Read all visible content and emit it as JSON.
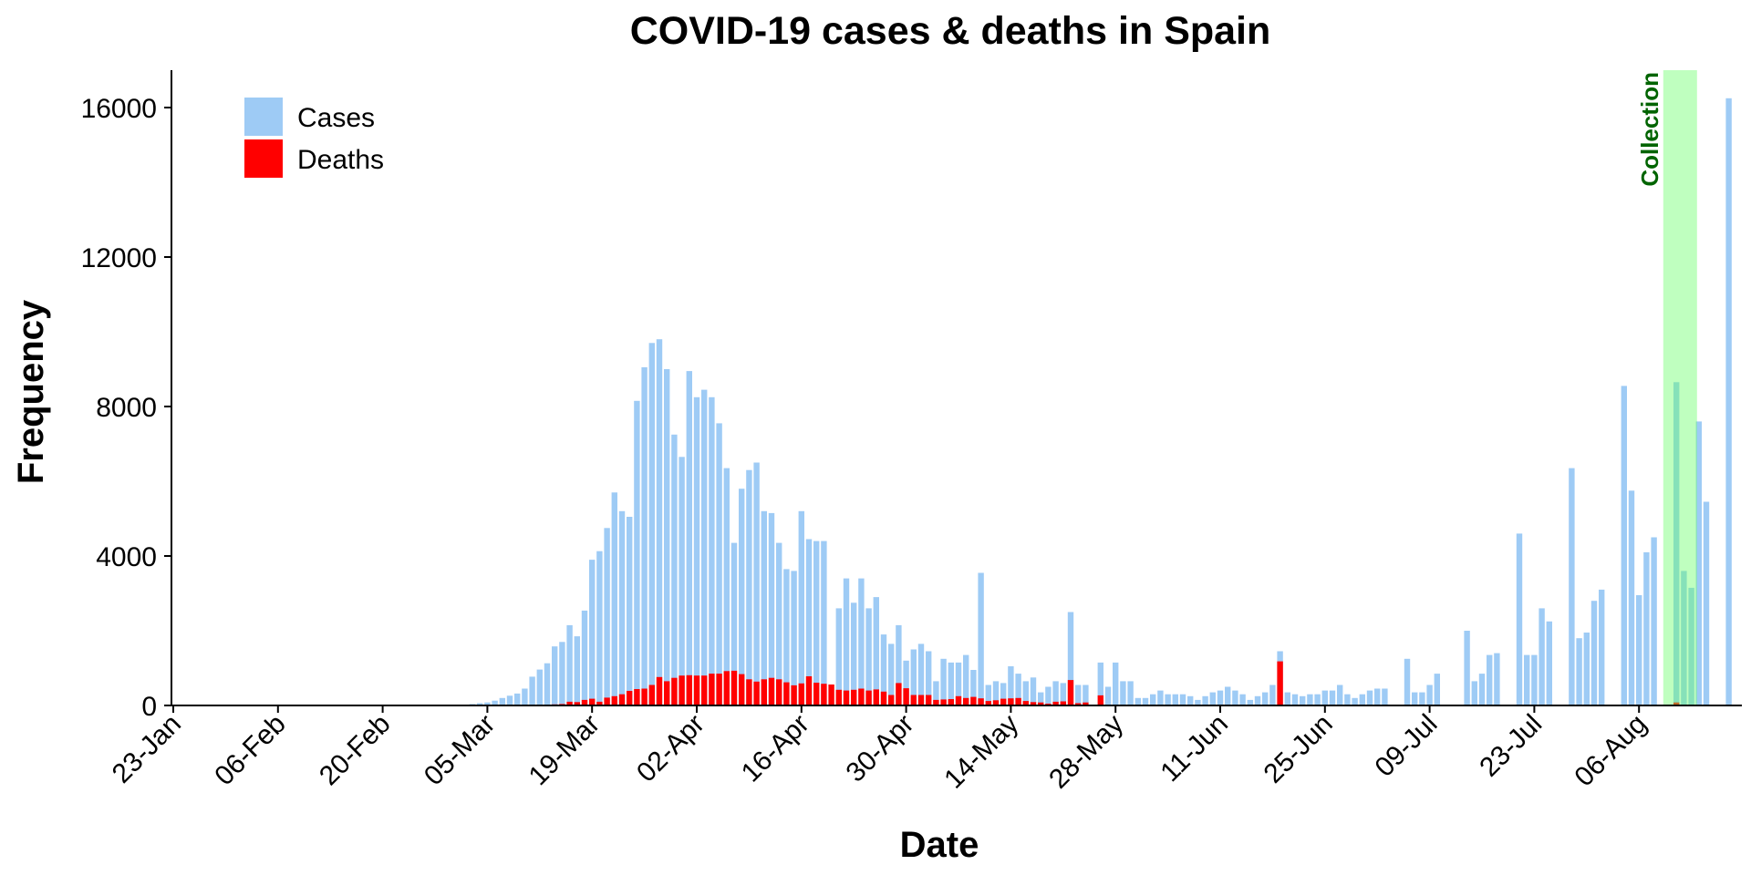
{
  "chart_data": {
    "type": "bar",
    "title": "COVID-19 cases & deaths in Spain",
    "xlabel": "Date",
    "ylabel": "Frequency",
    "ylim": [
      0,
      17000
    ],
    "yticks": [
      0,
      4000,
      8000,
      12000,
      16000
    ],
    "xtick_labels": [
      "23-Jan",
      "06-Feb",
      "20-Feb",
      "05-Mar",
      "19-Mar",
      "02-Apr",
      "16-Apr",
      "30-Apr",
      "14-May",
      "28-May",
      "11-Jun",
      "25-Jun",
      "09-Jul",
      "23-Jul",
      "06-Aug"
    ],
    "start_date": "2020-01-23",
    "legend": {
      "position": "top-left",
      "items": [
        {
          "label": "Cases",
          "color": "#9ECBF5"
        },
        {
          "label": "Deaths",
          "color": "#FF0000"
        }
      ]
    },
    "annotation": {
      "label": "Collection",
      "start_date": "2020-08-10",
      "end_date": "2020-08-13",
      "color": "#66FF66",
      "text_color": "#006400"
    },
    "grid": false,
    "series": [
      {
        "name": "Cases",
        "color": "#9ECBF5",
        "points": [
          [
            "2020-03-01",
            15
          ],
          [
            "2020-03-02",
            25
          ],
          [
            "2020-03-03",
            40
          ],
          [
            "2020-03-04",
            60
          ],
          [
            "2020-03-05",
            80
          ],
          [
            "2020-03-06",
            130
          ],
          [
            "2020-03-07",
            200
          ],
          [
            "2020-03-08",
            260
          ],
          [
            "2020-03-09",
            320
          ],
          [
            "2020-03-10",
            450
          ],
          [
            "2020-03-11",
            770
          ],
          [
            "2020-03-12",
            960
          ],
          [
            "2020-03-13",
            1130
          ],
          [
            "2020-03-14",
            1580
          ],
          [
            "2020-03-15",
            1700
          ],
          [
            "2020-03-16",
            2150
          ],
          [
            "2020-03-17",
            1850
          ],
          [
            "2020-03-18",
            2540
          ],
          [
            "2020-03-19",
            3900
          ],
          [
            "2020-03-20",
            4130
          ],
          [
            "2020-03-21",
            4750
          ],
          [
            "2020-03-22",
            5700
          ],
          [
            "2020-03-23",
            5200
          ],
          [
            "2020-03-24",
            5050
          ],
          [
            "2020-03-25",
            8150
          ],
          [
            "2020-03-26",
            9050
          ],
          [
            "2020-03-27",
            9700
          ],
          [
            "2020-03-28",
            9800
          ],
          [
            "2020-03-29",
            9000
          ],
          [
            "2020-03-30",
            7250
          ],
          [
            "2020-03-31",
            6650
          ],
          [
            "2020-04-01",
            8950
          ],
          [
            "2020-04-02",
            8250
          ],
          [
            "2020-04-03",
            8450
          ],
          [
            "2020-04-04",
            8250
          ],
          [
            "2020-04-05",
            7550
          ],
          [
            "2020-04-06",
            6350
          ],
          [
            "2020-04-07",
            4350
          ],
          [
            "2020-04-08",
            5800
          ],
          [
            "2020-04-09",
            6300
          ],
          [
            "2020-04-10",
            6500
          ],
          [
            "2020-04-11",
            5200
          ],
          [
            "2020-04-12",
            5150
          ],
          [
            "2020-04-13",
            4350
          ],
          [
            "2020-04-14",
            3650
          ],
          [
            "2020-04-15",
            3600
          ],
          [
            "2020-04-16",
            5200
          ],
          [
            "2020-04-17",
            4450
          ],
          [
            "2020-04-18",
            4400
          ],
          [
            "2020-04-19",
            4400
          ],
          [
            "2020-04-21",
            2600
          ],
          [
            "2020-04-22",
            3400
          ],
          [
            "2020-04-23",
            2750
          ],
          [
            "2020-04-24",
            3400
          ],
          [
            "2020-04-25",
            2600
          ],
          [
            "2020-04-26",
            2900
          ],
          [
            "2020-04-27",
            1900
          ],
          [
            "2020-04-28",
            1650
          ],
          [
            "2020-04-29",
            2150
          ],
          [
            "2020-04-30",
            1200
          ],
          [
            "2020-05-01",
            1500
          ],
          [
            "2020-05-02",
            1650
          ],
          [
            "2020-05-03",
            1450
          ],
          [
            "2020-05-04",
            650
          ],
          [
            "2020-05-05",
            1250
          ],
          [
            "2020-05-06",
            1150
          ],
          [
            "2020-05-07",
            1150
          ],
          [
            "2020-05-08",
            1350
          ],
          [
            "2020-05-09",
            950
          ],
          [
            "2020-05-10",
            3550
          ],
          [
            "2020-05-11",
            550
          ],
          [
            "2020-05-12",
            650
          ],
          [
            "2020-05-13",
            600
          ],
          [
            "2020-05-14",
            1050
          ],
          [
            "2020-05-15",
            850
          ],
          [
            "2020-05-16",
            650
          ],
          [
            "2020-05-17",
            750
          ],
          [
            "2020-05-18",
            350
          ],
          [
            "2020-05-19",
            500
          ],
          [
            "2020-05-20",
            650
          ],
          [
            "2020-05-21",
            600
          ],
          [
            "2020-05-22",
            2500
          ],
          [
            "2020-05-23",
            550
          ],
          [
            "2020-05-24",
            550
          ],
          [
            "2020-05-26",
            1150
          ],
          [
            "2020-05-27",
            500
          ],
          [
            "2020-05-28",
            1150
          ],
          [
            "2020-05-29",
            650
          ],
          [
            "2020-05-30",
            650
          ],
          [
            "2020-05-31",
            200
          ],
          [
            "2020-06-01",
            200
          ],
          [
            "2020-06-02",
            300
          ],
          [
            "2020-06-03",
            400
          ],
          [
            "2020-06-04",
            300
          ],
          [
            "2020-06-05",
            300
          ],
          [
            "2020-06-06",
            300
          ],
          [
            "2020-06-07",
            250
          ],
          [
            "2020-06-08",
            150
          ],
          [
            "2020-06-09",
            250
          ],
          [
            "2020-06-10",
            350
          ],
          [
            "2020-06-11",
            400
          ],
          [
            "2020-06-12",
            500
          ],
          [
            "2020-06-13",
            400
          ],
          [
            "2020-06-14",
            300
          ],
          [
            "2020-06-15",
            150
          ],
          [
            "2020-06-16",
            250
          ],
          [
            "2020-06-17",
            350
          ],
          [
            "2020-06-18",
            550
          ],
          [
            "2020-06-19",
            1450
          ],
          [
            "2020-06-20",
            350
          ],
          [
            "2020-06-21",
            300
          ],
          [
            "2020-06-22",
            250
          ],
          [
            "2020-06-23",
            300
          ],
          [
            "2020-06-24",
            300
          ],
          [
            "2020-06-25",
            400
          ],
          [
            "2020-06-26",
            400
          ],
          [
            "2020-06-27",
            550
          ],
          [
            "2020-06-28",
            300
          ],
          [
            "2020-06-29",
            200
          ],
          [
            "2020-06-30",
            300
          ],
          [
            "2020-07-01",
            400
          ],
          [
            "2020-07-02",
            450
          ],
          [
            "2020-07-03",
            450
          ],
          [
            "2020-07-06",
            1250
          ],
          [
            "2020-07-07",
            350
          ],
          [
            "2020-07-08",
            350
          ],
          [
            "2020-07-09",
            550
          ],
          [
            "2020-07-10",
            850
          ],
          [
            "2020-07-14",
            2000
          ],
          [
            "2020-07-15",
            650
          ],
          [
            "2020-07-16",
            850
          ],
          [
            "2020-07-17",
            1350
          ],
          [
            "2020-07-18",
            1400
          ],
          [
            "2020-07-21",
            4600
          ],
          [
            "2020-07-22",
            1350
          ],
          [
            "2020-07-23",
            1350
          ],
          [
            "2020-07-24",
            2600
          ],
          [
            "2020-07-25",
            2250
          ],
          [
            "2020-07-28",
            6350
          ],
          [
            "2020-07-29",
            1800
          ],
          [
            "2020-07-30",
            1950
          ],
          [
            "2020-07-31",
            2800
          ],
          [
            "2020-08-01",
            3100
          ],
          [
            "2020-08-04",
            8550
          ],
          [
            "2020-08-05",
            5750
          ],
          [
            "2020-08-06",
            2950
          ],
          [
            "2020-08-07",
            4100
          ],
          [
            "2020-08-08",
            4500
          ],
          [
            "2020-08-11",
            8650
          ],
          [
            "2020-08-12",
            3600
          ],
          [
            "2020-08-13",
            3150
          ],
          [
            "2020-08-14",
            7600
          ],
          [
            "2020-08-15",
            5450
          ],
          [
            "2020-08-18",
            16250
          ]
        ]
      },
      {
        "name": "Deaths",
        "color": "#FF0000",
        "points": [
          [
            "2020-03-13",
            20
          ],
          [
            "2020-03-14",
            30
          ],
          [
            "2020-03-15",
            40
          ],
          [
            "2020-03-16",
            100
          ],
          [
            "2020-03-17",
            90
          ],
          [
            "2020-03-18",
            150
          ],
          [
            "2020-03-19",
            180
          ],
          [
            "2020-03-20",
            100
          ],
          [
            "2020-03-21",
            210
          ],
          [
            "2020-03-22",
            250
          ],
          [
            "2020-03-23",
            300
          ],
          [
            "2020-03-24",
            390
          ],
          [
            "2020-03-25",
            440
          ],
          [
            "2020-03-26",
            450
          ],
          [
            "2020-03-27",
            550
          ],
          [
            "2020-03-28",
            760
          ],
          [
            "2020-03-29",
            650
          ],
          [
            "2020-03-30",
            740
          ],
          [
            "2020-03-31",
            800
          ],
          [
            "2020-04-01",
            810
          ],
          [
            "2020-04-02",
            800
          ],
          [
            "2020-04-03",
            800
          ],
          [
            "2020-04-04",
            850
          ],
          [
            "2020-04-05",
            850
          ],
          [
            "2020-04-06",
            920
          ],
          [
            "2020-04-07",
            930
          ],
          [
            "2020-04-08",
            840
          ],
          [
            "2020-04-09",
            700
          ],
          [
            "2020-04-10",
            640
          ],
          [
            "2020-04-11",
            700
          ],
          [
            "2020-04-12",
            740
          ],
          [
            "2020-04-13",
            700
          ],
          [
            "2020-04-14",
            620
          ],
          [
            "2020-04-15",
            540
          ],
          [
            "2020-04-16",
            590
          ],
          [
            "2020-04-17",
            780
          ],
          [
            "2020-04-18",
            610
          ],
          [
            "2020-04-19",
            580
          ],
          [
            "2020-04-20",
            560
          ],
          [
            "2020-04-21",
            420
          ],
          [
            "2020-04-22",
            400
          ],
          [
            "2020-04-23",
            420
          ],
          [
            "2020-04-24",
            450
          ],
          [
            "2020-04-25",
            400
          ],
          [
            "2020-04-26",
            430
          ],
          [
            "2020-04-27",
            370
          ],
          [
            "2020-04-28",
            280
          ],
          [
            "2020-04-29",
            600
          ],
          [
            "2020-04-30",
            460
          ],
          [
            "2020-05-01",
            280
          ],
          [
            "2020-05-02",
            280
          ],
          [
            "2020-05-03",
            280
          ],
          [
            "2020-05-04",
            150
          ],
          [
            "2020-05-05",
            160
          ],
          [
            "2020-05-06",
            170
          ],
          [
            "2020-05-07",
            250
          ],
          [
            "2020-05-08",
            200
          ],
          [
            "2020-05-09",
            230
          ],
          [
            "2020-05-10",
            190
          ],
          [
            "2020-05-11",
            120
          ],
          [
            "2020-05-12",
            140
          ],
          [
            "2020-05-13",
            180
          ],
          [
            "2020-05-14",
            190
          ],
          [
            "2020-05-15",
            200
          ],
          [
            "2020-05-16",
            120
          ],
          [
            "2020-05-17",
            90
          ],
          [
            "2020-05-18",
            80
          ],
          [
            "2020-05-19",
            50
          ],
          [
            "2020-05-20",
            100
          ],
          [
            "2020-05-21",
            110
          ],
          [
            "2020-05-22",
            680
          ],
          [
            "2020-05-23",
            60
          ],
          [
            "2020-05-24",
            80
          ],
          [
            "2020-05-26",
            270
          ],
          [
            "2020-06-19",
            1180
          ],
          [
            "2020-08-11",
            80
          ]
        ]
      }
    ]
  }
}
